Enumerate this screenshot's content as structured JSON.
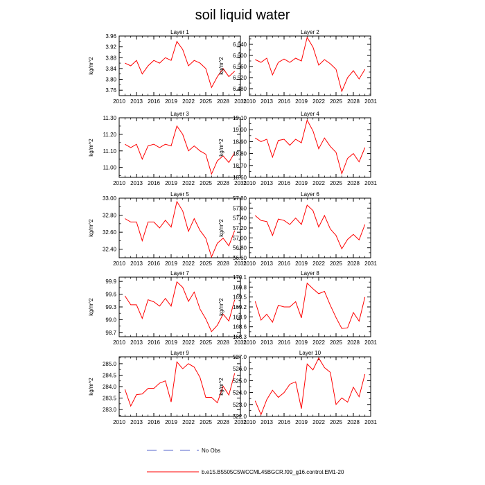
{
  "figure": {
    "title": "soil liquid water",
    "legend": {
      "obs_label": "No Obs",
      "model_label": "b.e15.B5505C5WCCML45BGCR.f09_g16.control.EM1-20",
      "obs_color": "#5566cc",
      "model_color": "#ff0000"
    }
  },
  "chart_data": [
    {
      "type": "line",
      "title": "Layer 1",
      "ylabel": "kg/m^2",
      "xlim": [
        2010,
        2031
      ],
      "ylim": [
        3.74,
        3.96
      ],
      "xticks": [
        2010,
        2013,
        2016,
        2019,
        2022,
        2025,
        2028,
        2031
      ],
      "yticks": [
        "3.76",
        "3.80",
        "3.84",
        "3.88",
        "3.92",
        "3.96"
      ],
      "series": [
        {
          "x": [
            2011,
            2012,
            2013,
            2014,
            2015,
            2016,
            2017,
            2018,
            2019,
            2020,
            2021,
            2022,
            2023,
            2024,
            2025,
            2026,
            2027,
            2028,
            2029,
            2030
          ],
          "values": [
            3.86,
            3.85,
            3.87,
            3.82,
            3.85,
            3.87,
            3.86,
            3.88,
            3.87,
            3.94,
            3.91,
            3.85,
            3.87,
            3.86,
            3.84,
            3.77,
            3.81,
            3.84,
            3.81,
            3.83
          ]
        }
      ]
    },
    {
      "type": "line",
      "title": "Layer 2",
      "ylabel": "kg/m^2",
      "xlim": [
        2010,
        2031
      ],
      "ylim": [
        6.455,
        6.67
      ],
      "xticks": [
        2010,
        2013,
        2016,
        2019,
        2022,
        2025,
        2028,
        2031
      ],
      "yticks": [
        "6.480",
        "6.520",
        "6.560",
        "6.600",
        "6.640"
      ],
      "series": [
        {
          "x": [
            2011,
            2012,
            2013,
            2014,
            2015,
            2016,
            2017,
            2018,
            2019,
            2020,
            2021,
            2022,
            2023,
            2024,
            2025,
            2026,
            2027,
            2028,
            2029,
            2030
          ],
          "values": [
            6.585,
            6.575,
            6.59,
            6.53,
            6.575,
            6.587,
            6.575,
            6.59,
            6.58,
            6.665,
            6.63,
            6.565,
            6.585,
            6.57,
            6.55,
            6.47,
            6.52,
            6.545,
            6.515,
            6.55
          ]
        }
      ]
    },
    {
      "type": "line",
      "title": "Layer 3",
      "ylabel": "kg/m^2",
      "xlim": [
        2010,
        2031
      ],
      "ylim": [
        10.94,
        11.3
      ],
      "xticks": [
        2010,
        2013,
        2016,
        2019,
        2022,
        2025,
        2028,
        2031
      ],
      "yticks": [
        "11.00",
        "11.10",
        "11.20",
        "11.30"
      ],
      "series": [
        {
          "x": [
            2011,
            2012,
            2013,
            2014,
            2015,
            2016,
            2017,
            2018,
            2019,
            2020,
            2021,
            2022,
            2023,
            2024,
            2025,
            2026,
            2027,
            2028,
            2029,
            2030
          ],
          "values": [
            11.14,
            11.12,
            11.14,
            11.05,
            11.13,
            11.14,
            11.12,
            11.14,
            11.13,
            11.25,
            11.2,
            11.1,
            11.13,
            11.1,
            11.08,
            10.96,
            11.04,
            11.07,
            11.03,
            11.09
          ]
        }
      ]
    },
    {
      "type": "line",
      "title": "Layer 4",
      "ylabel": "kg/m^2",
      "xlim": [
        2010,
        2031
      ],
      "ylim": [
        18.6,
        19.1
      ],
      "xticks": [
        2010,
        2013,
        2016,
        2019,
        2022,
        2025,
        2028,
        2031
      ],
      "yticks": [
        "18.60",
        "18.70",
        "18.80",
        "18.90",
        "19.00",
        "19.10"
      ],
      "series": [
        {
          "x": [
            2011,
            2012,
            2013,
            2014,
            2015,
            2016,
            2017,
            2018,
            2019,
            2020,
            2021,
            2022,
            2023,
            2024,
            2025,
            2026,
            2027,
            2028,
            2029,
            2030
          ],
          "values": [
            18.93,
            18.9,
            18.92,
            18.77,
            18.91,
            18.92,
            18.87,
            18.92,
            18.89,
            19.08,
            18.99,
            18.84,
            18.93,
            18.86,
            18.81,
            18.63,
            18.76,
            18.8,
            18.73,
            18.85
          ]
        }
      ]
    },
    {
      "type": "line",
      "title": "Layer 5",
      "ylabel": "kg/m^2",
      "xlim": [
        2010,
        2031
      ],
      "ylim": [
        32.3,
        33.0
      ],
      "xticks": [
        2010,
        2013,
        2016,
        2019,
        2022,
        2025,
        2028,
        2031
      ],
      "yticks": [
        "32.40",
        "32.60",
        "32.80",
        "33.00"
      ],
      "series": [
        {
          "x": [
            2011,
            2012,
            2013,
            2014,
            2015,
            2016,
            2017,
            2018,
            2019,
            2020,
            2021,
            2022,
            2023,
            2024,
            2025,
            2026,
            2027,
            2028,
            2029,
            2030
          ],
          "values": [
            32.76,
            32.72,
            32.72,
            32.5,
            32.72,
            32.72,
            32.65,
            32.74,
            32.66,
            32.96,
            32.85,
            32.61,
            32.76,
            32.62,
            32.53,
            32.31,
            32.47,
            32.53,
            32.44,
            32.62
          ]
        }
      ]
    },
    {
      "type": "line",
      "title": "Layer 6",
      "ylabel": "kg/m^2",
      "xlim": [
        2010,
        2031
      ],
      "ylim": [
        56.6,
        57.8
      ],
      "xticks": [
        2010,
        2013,
        2016,
        2019,
        2022,
        2025,
        2028,
        2031
      ],
      "yticks": [
        "56.60",
        "56.80",
        "57.00",
        "57.20",
        "57.40",
        "57.60",
        "57.80"
      ],
      "series": [
        {
          "x": [
            2011,
            2012,
            2013,
            2014,
            2015,
            2016,
            2017,
            2018,
            2019,
            2020,
            2021,
            2022,
            2023,
            2024,
            2025,
            2026,
            2027,
            2028,
            2029,
            2030
          ],
          "values": [
            57.45,
            57.35,
            57.33,
            57.05,
            57.38,
            57.35,
            57.27,
            57.4,
            57.27,
            57.66,
            57.55,
            57.22,
            57.45,
            57.18,
            57.05,
            56.78,
            56.97,
            57.07,
            56.96,
            57.27
          ]
        }
      ]
    },
    {
      "type": "line",
      "title": "Layer 7",
      "ylabel": "kg/m^2",
      "xlim": [
        2010,
        2031
      ],
      "ylim": [
        98.6,
        100.0
      ],
      "xticks": [
        2010,
        2013,
        2016,
        2019,
        2022,
        2025,
        2028,
        2031
      ],
      "yticks": [
        "98.7",
        "99.0",
        "99.3",
        "99.6",
        "99.9"
      ],
      "series": [
        {
          "x": [
            2011,
            2012,
            2013,
            2014,
            2015,
            2016,
            2017,
            2018,
            2019,
            2020,
            2021,
            2022,
            2023,
            2024,
            2025,
            2026,
            2027,
            2028,
            2029,
            2030
          ],
          "values": [
            99.56,
            99.35,
            99.35,
            99.03,
            99.47,
            99.42,
            99.32,
            99.5,
            99.32,
            99.89,
            99.76,
            99.43,
            99.65,
            99.25,
            99.02,
            98.72,
            98.87,
            99.13,
            98.97,
            99.47
          ]
        }
      ]
    },
    {
      "type": "line",
      "title": "Layer 8",
      "ylabel": "kg/m^2",
      "xlim": [
        2010,
        2031
      ],
      "ylim": [
        168.3,
        170.1
      ],
      "xticks": [
        2010,
        2013,
        2016,
        2019,
        2022,
        2025,
        2028,
        2031
      ],
      "yticks": [
        "168.3",
        "168.6",
        "168.9",
        "169.2",
        "169.5",
        "169.8",
        "170.1"
      ],
      "series": [
        {
          "x": [
            2011,
            2012,
            2013,
            2014,
            2015,
            2016,
            2017,
            2018,
            2019,
            2020,
            2021,
            2022,
            2023,
            2024,
            2025,
            2026,
            2027,
            2028,
            2029,
            2030
          ],
          "values": [
            169.37,
            168.8,
            168.98,
            168.74,
            169.25,
            169.2,
            169.2,
            169.36,
            168.87,
            169.92,
            169.75,
            169.6,
            169.67,
            169.25,
            168.88,
            168.55,
            168.57,
            169.03,
            168.77,
            169.5
          ]
        }
      ]
    },
    {
      "type": "line",
      "title": "Layer 9",
      "ylabel": "kg/m^2",
      "xlim": [
        2010,
        2031
      ],
      "ylim": [
        282.7,
        285.3
      ],
      "xticks": [
        2010,
        2013,
        2016,
        2019,
        2022,
        2025,
        2028,
        2031
      ],
      "yticks": [
        "283.0",
        "283.5",
        "284.0",
        "284.5",
        "285.0"
      ],
      "series": [
        {
          "x": [
            2011,
            2012,
            2013,
            2014,
            2015,
            2016,
            2017,
            2018,
            2019,
            2020,
            2021,
            2022,
            2023,
            2024,
            2025,
            2026,
            2027,
            2028,
            2029,
            2030
          ],
          "values": [
            283.88,
            283.15,
            283.65,
            283.68,
            283.92,
            283.92,
            284.15,
            284.25,
            283.33,
            285.08,
            284.78,
            285.0,
            284.85,
            284.4,
            283.53,
            283.53,
            283.3,
            284.02,
            283.63,
            284.58
          ]
        }
      ]
    },
    {
      "type": "line",
      "title": "Layer 10",
      "ylabel": "kg/m^2",
      "xlim": [
        2010,
        2031
      ],
      "ylim": [
        522.0,
        527.0
      ],
      "xticks": [
        2010,
        2013,
        2016,
        2019,
        2022,
        2025,
        2028,
        2031
      ],
      "yticks": [
        "522.0",
        "523.0",
        "524.0",
        "525.0",
        "526.0",
        "527.0"
      ],
      "series": [
        {
          "x": [
            2011,
            2012,
            2013,
            2014,
            2015,
            2016,
            2017,
            2018,
            2019,
            2020,
            2021,
            2022,
            2023,
            2024,
            2025,
            2026,
            2027,
            2028,
            2029,
            2030
          ],
          "values": [
            523.3,
            522.15,
            523.4,
            524.2,
            523.6,
            524.0,
            524.7,
            524.9,
            522.65,
            526.4,
            525.9,
            526.9,
            526.1,
            525.7,
            523.0,
            523.55,
            523.2,
            524.45,
            523.65,
            525.55
          ]
        }
      ]
    }
  ]
}
